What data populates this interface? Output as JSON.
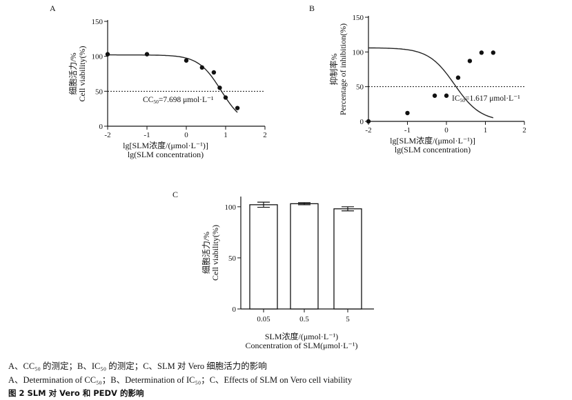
{
  "chart_data": [
    {
      "panel": "A",
      "type": "scatter",
      "ylabel_cn": "细胞活力/%",
      "ylabel_en": "Cell viability(%)",
      "xlabel_cn": "lg[SLM浓度/(μmol·L⁻¹)]",
      "xlabel_en": "lg(SLM concentration)",
      "xlim": [
        -2,
        2
      ],
      "ylim": [
        0,
        150
      ],
      "xticks": [
        "-2",
        "-1",
        "0",
        "1",
        "2"
      ],
      "yticks": [
        "0",
        "50",
        "100",
        "150"
      ],
      "x": [
        -2,
        -1,
        0,
        0.4,
        0.7,
        0.85,
        1.0,
        1.3
      ],
      "y": [
        103,
        103,
        94,
        84,
        77,
        55,
        41,
        26
      ],
      "curve": {
        "model": "logistic",
        "top": 102,
        "bottom": 0,
        "mid_log": 0.886,
        "hill": 1.5
      },
      "reference_line": 50,
      "annotation_prefix": "CC",
      "annotation_sub": "50",
      "annotation_value": "=7.698 μmol·L⁻¹"
    },
    {
      "panel": "B",
      "type": "scatter",
      "ylabel_cn": "抑制率%",
      "ylabel_en": "Percentage of inhibition(%)",
      "xlabel_cn": "lg[SLM浓度/(μmol·L⁻¹)]",
      "xlabel_en": "lg(SLM concentration)",
      "xlim": [
        -2,
        2
      ],
      "ylim": [
        0,
        150
      ],
      "xticks": [
        "-2",
        "-1",
        "0",
        "1",
        "2"
      ],
      "yticks": [
        "0",
        "50",
        "100",
        "150"
      ],
      "x": [
        -2,
        -1,
        -0.3,
        0,
        0.3,
        0.6,
        0.9,
        1.2
      ],
      "y": [
        0,
        12,
        37,
        37,
        63,
        87,
        99,
        99
      ],
      "curve": {
        "model": "logistic",
        "top": 106,
        "bottom": 0,
        "mid_log": 0.209,
        "hill": 1.3
      },
      "reference_line": 50,
      "annotation_prefix": "IC",
      "annotation_sub": "50",
      "annotation_value": "=1.617 μmol·L⁻¹"
    },
    {
      "panel": "C",
      "type": "bar",
      "ylabel_cn": "细胞活力/%",
      "ylabel_en": "Cell viability(%)",
      "xlabel_cn": "SLM浓度/(μmol·L⁻¹)",
      "xlabel_en": "Concentration of SLM(μmol·L⁻¹)",
      "categories": [
        "0.05",
        "0.5",
        "5"
      ],
      "values": [
        102,
        103,
        98
      ],
      "errors": [
        2.5,
        1,
        2
      ],
      "ylim": [
        0,
        110
      ],
      "yticks": [
        "0",
        "50",
        "100"
      ]
    }
  ],
  "caption": {
    "line1": "A、CC₅₀ 的测定；B、IC₅₀ 的测定；C、SLM 对 Vero 细胞活力的影响",
    "line2": "A、Determination of CC₅₀；B、Determination of IC₅₀；C、Effects of SLM on Vero cell viability",
    "line3": "图 2   SLM 对 Vero 和 PEDV 的影响"
  }
}
